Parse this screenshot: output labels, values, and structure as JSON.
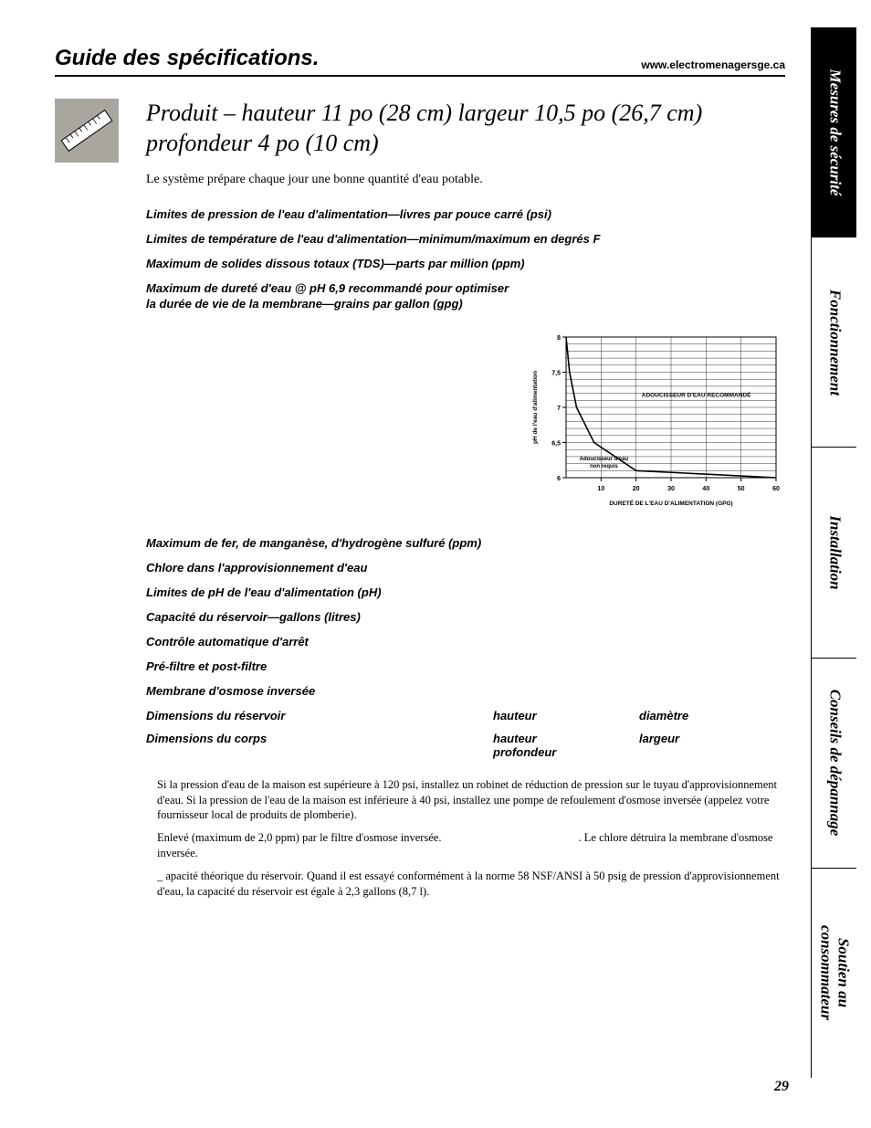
{
  "header": {
    "title": "Guide des spécifications.",
    "url": "www.electromenagersge.ca"
  },
  "product_title_l1": "Produit – hauteur 11 po (28 cm)  largeur 10,5 po (26,7 cm)",
  "product_title_l2": "profondeur 4 po (10 cm)",
  "intro": "Le système prépare chaque jour une bonne quantité d'eau potable.",
  "specs_block1": [
    "Limites de pression de l'eau d'alimentation—livres par pouce carré (psi)",
    "Limites de température de l'eau d'alimentation—minimum/maximum en degrés F",
    "Maximum de solides dissous totaux (TDS)—parts par million (ppm)",
    "Maximum de dureté d'eau @ pH 6,9 recommandé pour optimiser\nla durée de vie de la membrane—grains par gallon (gpg)"
  ],
  "chart": {
    "y_label": "pH de l'eau d'alimentation",
    "x_label": "DURETÉ DE L'EAU D'ALIMENTATION (GPG)",
    "region_above": "ADOUCISSEUR D'EAU RECOMMANDÉ",
    "region_below": "Adoucisseur d'eau\nnon requis",
    "y_ticks": [
      "6",
      "6,5",
      "7",
      "7,5",
      "8"
    ],
    "x_ticks": [
      "10",
      "20",
      "30",
      "40",
      "50",
      "60"
    ],
    "xlim": [
      0,
      60
    ],
    "ylim": [
      6,
      8
    ],
    "curve_points": [
      [
        0,
        8
      ],
      [
        1,
        7.5
      ],
      [
        3,
        7
      ],
      [
        8,
        6.5
      ],
      [
        20,
        6.1
      ],
      [
        60,
        6
      ]
    ],
    "grid_color": "#000000",
    "bg_color": "#ffffff",
    "line_color": "#000000",
    "font_size_labels": 7,
    "font_size_axis": 7
  },
  "specs_block2": [
    "Maximum de fer, de manganèse, d'hydrogène sulfuré (ppm)",
    "Chlore dans l'approvisionnement d'eau",
    "Limites de pH de l'eau d'alimentation (pH)",
    "Capacité du réservoir—gallons (litres)",
    "Contrôle automatique d'arrêt",
    "Pré-filtre et post-filtre",
    "Membrane d'osmose inversée"
  ],
  "dims": [
    {
      "label": "Dimensions du réservoir",
      "c1": "hauteur",
      "c2": "diamètre",
      "c3": ""
    },
    {
      "label": "Dimensions du corps",
      "c1": "hauteur",
      "c2": "largeur",
      "c3": "profondeur"
    }
  ],
  "notes": [
    "Si la pression d'eau de la maison est supérieure à 120 psi, installez un robinet de réduction de pression sur le tuyau d'approvisionnement d'eau. Si la pression de l'eau de la maison est inférieure à 40 psi, installez une pompe de refoulement d'osmose inversée (appelez votre fournisseur local de produits de plomberie).",
    "Enlevé (maximum de 2,0 ppm) par le filtre d'osmose inversée.{{gap}}. Le chlore détruira la membrane d'osmose inversée.",
    "_ apacité théorique du réservoir. Quand il est essayé conformément à la norme 58 NSF/ANSI à 50 psig de pression d'approvisionnement d'eau, la capacité du réservoir est égale à 2,3 gallons (8,7 l)."
  ],
  "tabs": [
    {
      "label": "Mesures de sécurité",
      "active": true
    },
    {
      "label": "Fonctionnement",
      "active": false
    },
    {
      "label": "Installation",
      "active": false
    },
    {
      "label": "Conseils de dépannage",
      "active": false
    },
    {
      "label": "Soutien au\nconsommateur",
      "active": false
    }
  ],
  "page_number": "29"
}
